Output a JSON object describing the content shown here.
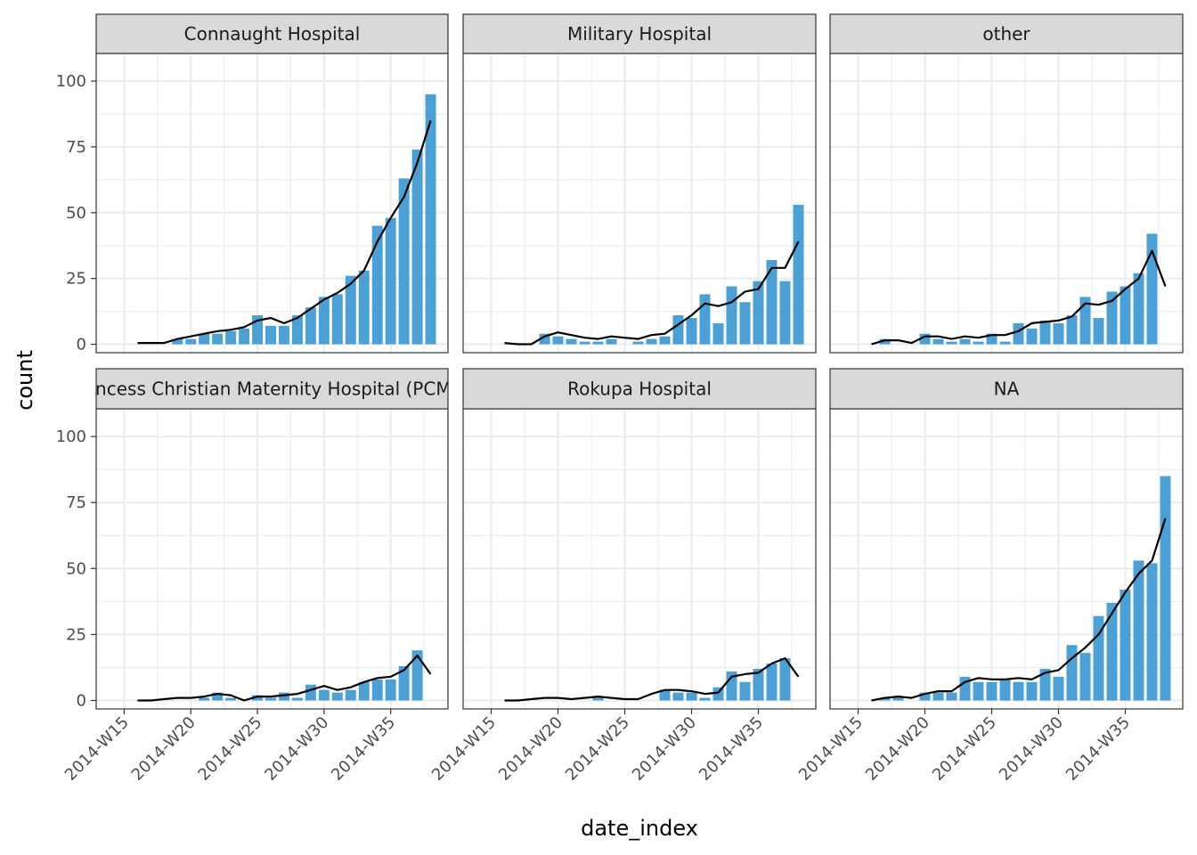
{
  "chart_data": {
    "type": "bar",
    "facet_layout": "2x3 grid",
    "xlabel": "date_index",
    "ylabel": "count",
    "ylim": [
      0,
      100
    ],
    "y_ticks": [
      0,
      25,
      50,
      75,
      100
    ],
    "x_ticks": [
      "2014-W15",
      "2014-W20",
      "2014-W25",
      "2014-W30",
      "2014-W35"
    ],
    "x_weeks": [
      16,
      17,
      18,
      19,
      20,
      21,
      22,
      23,
      24,
      25,
      26,
      27,
      28,
      29,
      30,
      31,
      32,
      33,
      34,
      35,
      36,
      37,
      38
    ],
    "grid": true,
    "bar_color": "#3a96cf",
    "line_color": "#000000",
    "strip_background": "#d9d9d9",
    "panels": [
      {
        "label": "Connaught Hospital",
        "values": [
          0,
          0,
          0,
          2,
          2,
          4,
          4,
          5,
          6,
          11,
          7,
          7,
          11,
          14,
          18,
          19,
          26,
          28,
          45,
          48,
          63,
          74,
          95
        ],
        "trend": [
          0.5,
          0.5,
          0.5,
          2,
          3,
          4,
          5,
          5.5,
          6.5,
          9,
          10,
          8,
          10,
          13.5,
          17,
          19.5,
          23,
          28,
          39,
          48,
          56,
          69,
          85
        ]
      },
      {
        "label": "Military Hospital",
        "values": [
          0,
          0,
          0,
          4,
          3,
          2,
          1,
          1,
          2,
          0,
          1,
          2,
          3,
          11,
          10,
          19,
          8,
          22,
          16,
          24,
          32,
          24,
          53
        ],
        "trend": [
          0.5,
          0,
          0,
          3,
          4.5,
          3.5,
          2.5,
          2,
          3,
          2.5,
          2,
          3.5,
          4,
          7.5,
          11,
          15.5,
          14.5,
          16,
          20,
          21,
          29,
          29,
          39
        ]
      },
      {
        "label": "other",
        "values": [
          0,
          2,
          0,
          0,
          4,
          2,
          1,
          2,
          1,
          4,
          1,
          8,
          6,
          9,
          8,
          11,
          18,
          10,
          20,
          22,
          27,
          42,
          0
        ],
        "trend": [
          0,
          1.5,
          1.5,
          0.5,
          3,
          3,
          2,
          3,
          2.5,
          3.5,
          3.5,
          5,
          8,
          8.5,
          9,
          10.5,
          15.5,
          15,
          16.5,
          21,
          25,
          35.5,
          22
        ]
      },
      {
        "label": "Princess Christian Maternity Hospital (PCMH)",
        "values": [
          0,
          0,
          0,
          0,
          0,
          1,
          3,
          1,
          0,
          2,
          1,
          3,
          1,
          6,
          4,
          3,
          4,
          7,
          8,
          8,
          13,
          19,
          0
        ],
        "trend": [
          0,
          0,
          0.5,
          1,
          1,
          1.5,
          2.5,
          2,
          0,
          1.5,
          1.5,
          2,
          2.5,
          4,
          5.5,
          4,
          5,
          7,
          8.5,
          9,
          11.5,
          17,
          10
        ]
      },
      {
        "label": "Rokupa Hospital",
        "values": [
          0,
          0,
          0,
          0,
          0,
          0,
          0,
          1,
          0,
          0,
          0,
          0,
          4,
          3,
          3,
          1,
          5,
          11,
          7,
          12,
          14,
          16,
          0
        ],
        "trend": [
          0,
          0,
          0.5,
          1,
          1,
          0.5,
          1,
          1.5,
          1,
          0.5,
          0.5,
          2.5,
          4,
          4,
          3.5,
          2.5,
          3,
          9,
          10,
          10.5,
          14,
          16,
          9
        ]
      },
      {
        "label": "NA",
        "values": [
          0,
          1,
          1,
          0,
          3,
          3,
          3,
          9,
          7,
          7,
          8,
          7,
          7,
          12,
          9,
          21,
          18,
          32,
          37,
          42,
          53,
          52,
          85
        ],
        "trend": [
          0,
          1,
          1.5,
          1,
          2.5,
          3.5,
          3.5,
          7,
          8.5,
          8,
          8,
          8.5,
          8,
          10.5,
          11.5,
          16,
          20,
          25,
          33,
          41,
          48,
          53,
          69
        ]
      }
    ]
  }
}
